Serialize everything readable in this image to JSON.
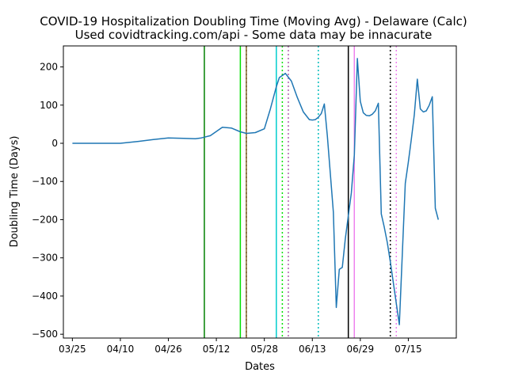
{
  "chart_data": {
    "type": "line",
    "title": "COVID-19 Hospitalization Doubling Time (Moving Avg) - Delaware (Calc)",
    "subtitle": "Used covidtracking.com/api - Some data may be innacurate",
    "xlabel": "Dates",
    "ylabel": "Doubling Time (Days)",
    "x_ticks": [
      "03/25",
      "04/10",
      "04/26",
      "05/12",
      "05/28",
      "06/13",
      "06/29",
      "07/15"
    ],
    "y_ticks": [
      200,
      100,
      0,
      -100,
      -200,
      -300,
      -400,
      -500
    ],
    "xlim": [
      "03/22",
      "07/31"
    ],
    "ylim": [
      -510,
      255
    ],
    "grid": false,
    "series": [
      {
        "color": "#1f77b4",
        "x": [
          "03/25",
          "04/03",
          "04/10",
          "04/16",
          "04/21",
          "04/26",
          "05/01",
          "05/05",
          "05/07",
          "05/10",
          "05/14",
          "05/17",
          "05/20",
          "05/22",
          "05/25",
          "05/28",
          "05/30",
          "06/01",
          "06/02",
          "06/04",
          "06/06",
          "06/08",
          "06/10",
          "06/12",
          "06/13",
          "06/14",
          "06/15",
          "06/16",
          "06/17",
          "06/18",
          "06/19",
          "06/20",
          "06/21",
          "06/22",
          "06/23",
          "06/24",
          "06/25",
          "06/26",
          "06/27",
          "06/28",
          "06/29",
          "06/30",
          "07/01",
          "07/02",
          "07/03",
          "07/04",
          "07/05",
          "07/06",
          "07/07",
          "07/08",
          "07/09",
          "07/12",
          "07/14",
          "07/15",
          "07/16",
          "07/17",
          "07/18",
          "07/19",
          "07/20",
          "07/21",
          "07/22",
          "07/23"
        ],
        "y": [
          0,
          0,
          0,
          5,
          10,
          14,
          13,
          12,
          14,
          20,
          42,
          40,
          30,
          26,
          28,
          38,
          90,
          148,
          172,
          183,
          163,
          120,
          82,
          62,
          61,
          62,
          68,
          78,
          103,
          20,
          -80,
          -180,
          -430,
          -330,
          -325,
          -250,
          -190,
          -130,
          -30,
          222,
          110,
          80,
          73,
          72,
          76,
          85,
          105,
          -185,
          -220,
          -260,
          -310,
          -475,
          -105,
          -50,
          10,
          75,
          168,
          90,
          82,
          85,
          100,
          122
        ]
      }
    ],
    "extra_series_tail": {
      "x": [
        "07/24",
        "07/25"
      ],
      "y": [
        -170,
        -200
      ]
    },
    "vertical_lines": [
      {
        "x": "05/08",
        "color": "#008000",
        "style": "solid"
      },
      {
        "x": "05/20",
        "color": "#00e000",
        "style": "solid"
      },
      {
        "x": "05/22",
        "color": "#000000",
        "style": "dotted"
      },
      {
        "x": "05/22",
        "color": "#8b6b30",
        "style": "solid"
      },
      {
        "x": "06/01",
        "color": "#00cccc",
        "style": "solid"
      },
      {
        "x": "06/03",
        "color": "#00e000",
        "style": "dotted"
      },
      {
        "x": "06/05",
        "color": "#b05fb0",
        "style": "dotted"
      },
      {
        "x": "06/15",
        "color": "#00bbbb",
        "style": "dotted"
      },
      {
        "x": "06/25",
        "color": "#000000",
        "style": "solid"
      },
      {
        "x": "06/27",
        "color": "#ee82ee",
        "style": "solid"
      },
      {
        "x": "07/09",
        "color": "#000000",
        "style": "dotted"
      },
      {
        "x": "07/11",
        "color": "#ee82ee",
        "style": "dotted"
      }
    ]
  }
}
